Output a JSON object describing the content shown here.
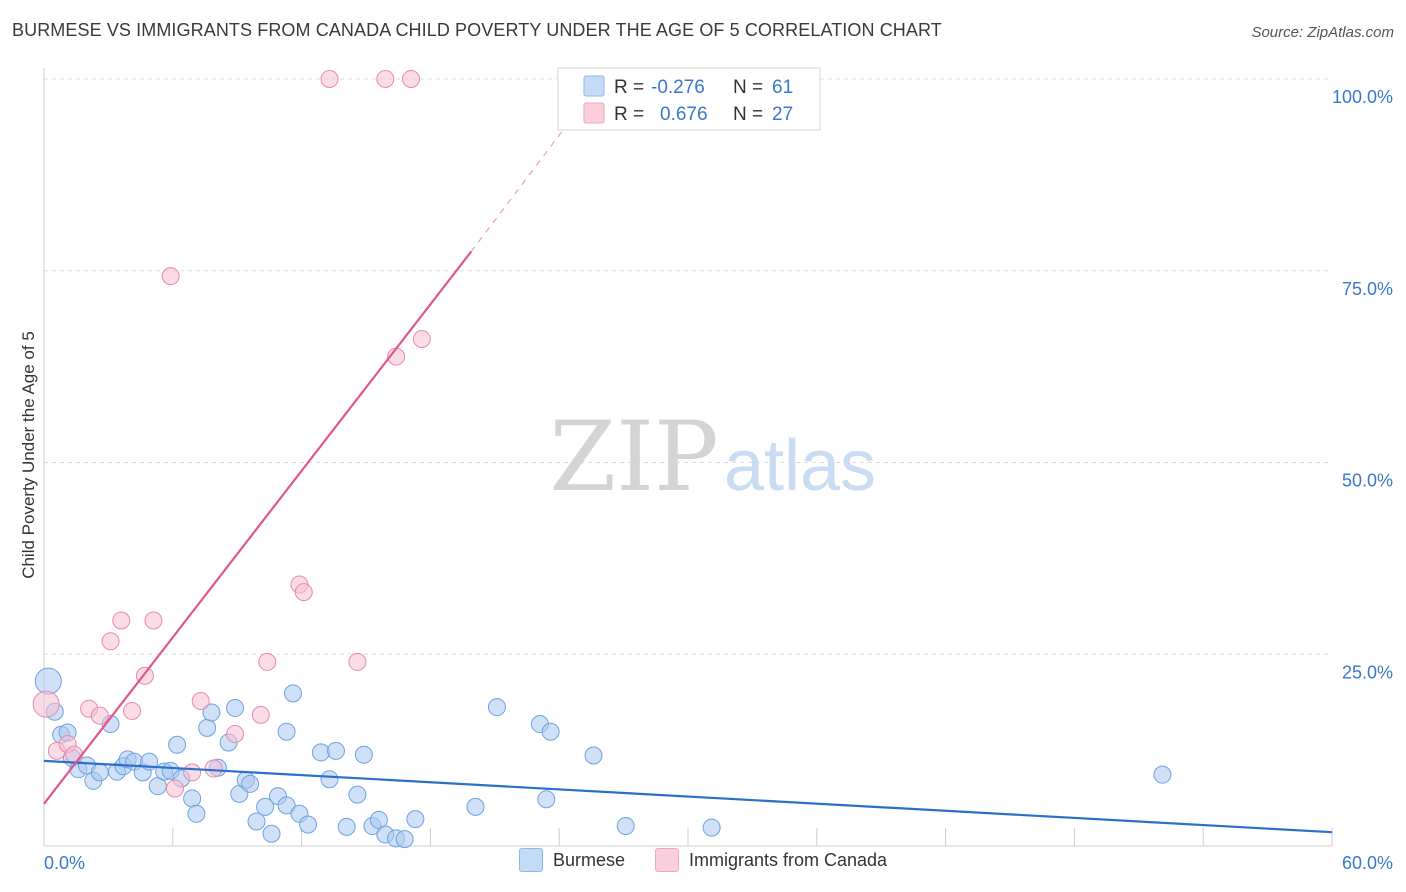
{
  "title": "BURMESE VS IMMIGRANTS FROM CANADA CHILD POVERTY UNDER THE AGE OF 5 CORRELATION CHART",
  "source": "Source: ZipAtlas.com",
  "watermark": {
    "zip": "ZIP",
    "atlas": "atlas"
  },
  "colors": {
    "blue_fill": "#a9c9f0",
    "blue_stroke": "#6fa2e0",
    "blue_line": "#2a6fcc",
    "pink_fill": "#f7c0d2",
    "pink_stroke": "#e98aac",
    "pink_line": "#e0588a",
    "axis_text": "#3a78c9",
    "grid": "#dddddd"
  },
  "stats": {
    "r_label": "R =",
    "n_label": "N =",
    "series": [
      {
        "name": "Burmese",
        "r": "-0.276",
        "n": "61"
      },
      {
        "name": "Immigrants from Canada",
        "r": "0.676",
        "n": "27"
      }
    ]
  },
  "chart_data": {
    "type": "scatter",
    "title": "BURMESE VS IMMIGRANTS FROM CANADA CHILD POVERTY UNDER THE AGE OF 5 CORRELATION CHART",
    "xlabel": "",
    "ylabel": "Child Poverty Under the Age of 5",
    "xlim": [
      0,
      60
    ],
    "ylim": [
      0,
      100
    ],
    "x_tick_labels": [
      {
        "value": 0,
        "label": "0.0%"
      },
      {
        "value": 60,
        "label": "60.0%"
      }
    ],
    "y_tick_labels": [
      {
        "value": 25,
        "label": "25.0%"
      },
      {
        "value": 50,
        "label": "50.0%"
      },
      {
        "value": 75,
        "label": "75.0%"
      },
      {
        "value": 100,
        "label": "100.0%"
      }
    ],
    "grid": true,
    "legend_position": "bottom-center",
    "series": [
      {
        "name": "Burmese",
        "color": "blue",
        "trend": {
          "x": [
            0,
            60
          ],
          "y": [
            11.1,
            1.8
          ]
        },
        "points": [
          [
            0.2,
            21.5
          ],
          [
            0.5,
            17.5
          ],
          [
            0.8,
            14.5
          ],
          [
            1.1,
            14.8
          ],
          [
            1.3,
            11.5
          ],
          [
            1.6,
            10.0
          ],
          [
            2.0,
            10.5
          ],
          [
            2.3,
            8.5
          ],
          [
            2.6,
            9.6
          ],
          [
            3.1,
            15.9
          ],
          [
            3.4,
            9.7
          ],
          [
            3.7,
            10.4
          ],
          [
            3.9,
            11.3
          ],
          [
            4.2,
            11.0
          ],
          [
            4.6,
            9.6
          ],
          [
            4.9,
            11.0
          ],
          [
            5.3,
            7.8
          ],
          [
            5.6,
            9.7
          ],
          [
            5.9,
            9.8
          ],
          [
            6.2,
            13.2
          ],
          [
            6.4,
            8.8
          ],
          [
            6.9,
            6.2
          ],
          [
            7.1,
            4.2
          ],
          [
            7.6,
            15.4
          ],
          [
            7.8,
            17.4
          ],
          [
            8.1,
            10.2
          ],
          [
            8.6,
            13.5
          ],
          [
            8.9,
            18.0
          ],
          [
            9.1,
            6.8
          ],
          [
            9.4,
            8.6
          ],
          [
            9.6,
            8.1
          ],
          [
            9.9,
            3.2
          ],
          [
            10.3,
            5.1
          ],
          [
            10.6,
            1.6
          ],
          [
            10.9,
            6.5
          ],
          [
            11.3,
            14.9
          ],
          [
            11.6,
            19.9
          ],
          [
            11.3,
            5.3
          ],
          [
            11.9,
            4.2
          ],
          [
            12.3,
            2.8
          ],
          [
            12.9,
            12.2
          ],
          [
            13.3,
            8.7
          ],
          [
            13.6,
            12.4
          ],
          [
            14.1,
            2.5
          ],
          [
            14.6,
            6.7
          ],
          [
            14.9,
            11.9
          ],
          [
            15.3,
            2.6
          ],
          [
            15.6,
            3.4
          ],
          [
            15.9,
            1.5
          ],
          [
            16.4,
            1.0
          ],
          [
            16.8,
            0.9
          ],
          [
            17.3,
            3.5
          ],
          [
            20.1,
            5.1
          ],
          [
            21.1,
            18.1
          ],
          [
            23.1,
            15.9
          ],
          [
            23.6,
            14.9
          ],
          [
            23.4,
            6.1
          ],
          [
            25.6,
            11.8
          ],
          [
            27.1,
            2.6
          ],
          [
            31.1,
            2.4
          ],
          [
            52.1,
            9.3
          ]
        ]
      },
      {
        "name": "Immigrants from Canada",
        "color": "pink",
        "trend": {
          "x": [
            0,
            19.9
          ],
          "y": [
            5.5,
            77.5
          ],
          "dashed_to": {
            "x": 24.9,
            "y": 96.0
          }
        },
        "points": [
          [
            0.1,
            18.5
          ],
          [
            0.6,
            12.4
          ],
          [
            1.1,
            13.3
          ],
          [
            1.4,
            11.9
          ],
          [
            2.1,
            17.9
          ],
          [
            2.6,
            17.0
          ],
          [
            3.1,
            26.7
          ],
          [
            3.6,
            29.4
          ],
          [
            4.1,
            17.6
          ],
          [
            4.7,
            22.2
          ],
          [
            5.1,
            29.4
          ],
          [
            5.9,
            74.3
          ],
          [
            6.1,
            7.5
          ],
          [
            6.9,
            9.6
          ],
          [
            7.3,
            18.9
          ],
          [
            7.9,
            10.1
          ],
          [
            8.9,
            14.6
          ],
          [
            10.1,
            17.1
          ],
          [
            10.4,
            24.0
          ],
          [
            11.9,
            34.1
          ],
          [
            12.1,
            33.1
          ],
          [
            13.3,
            100.0
          ],
          [
            14.6,
            24.0
          ],
          [
            15.9,
            100.0
          ],
          [
            16.4,
            63.8
          ],
          [
            17.1,
            100.0
          ],
          [
            17.6,
            66.1
          ]
        ]
      }
    ]
  }
}
